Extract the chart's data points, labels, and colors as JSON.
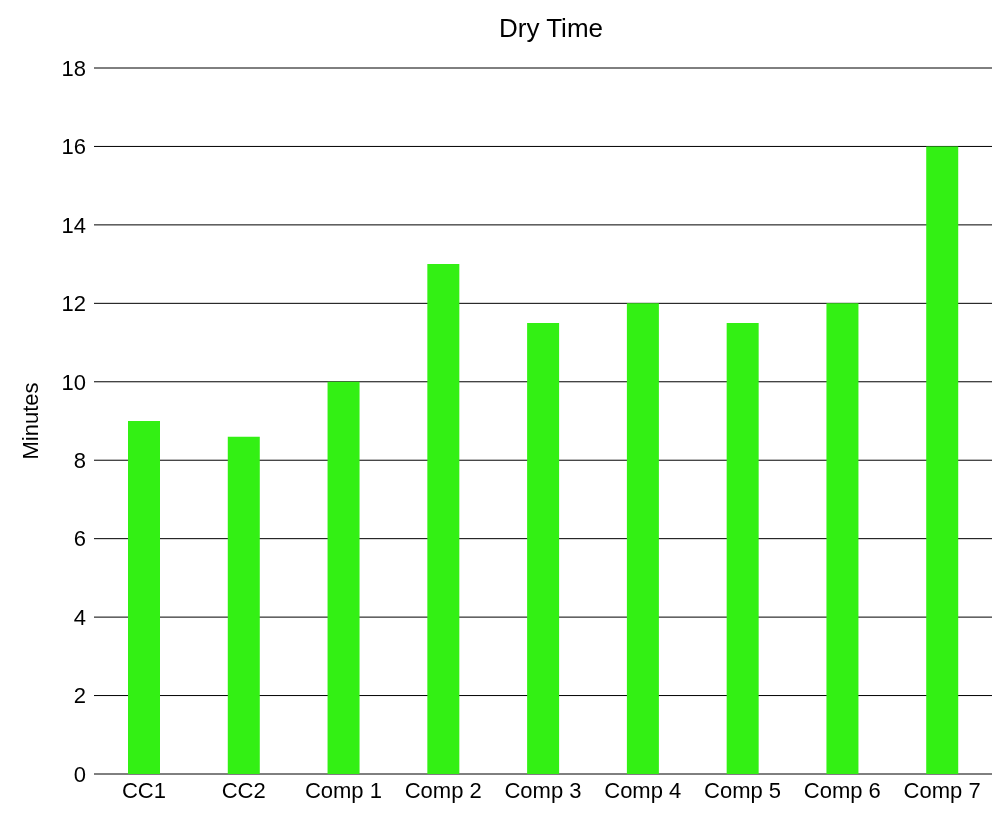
{
  "chart_data": {
    "type": "bar",
    "title": "Dry Time",
    "ylabel": "Minutes",
    "categories": [
      "CC1",
      "CC2",
      "Comp 1",
      "Comp 2",
      "Comp 3",
      "Comp 4",
      "Comp 5",
      "Comp 6",
      "Comp 7"
    ],
    "values": [
      9,
      8.6,
      10,
      13,
      11.5,
      12,
      11.5,
      12,
      16
    ],
    "color": "#33f014",
    "ylim": [
      0,
      18
    ],
    "yticks": [
      0,
      2,
      4,
      6,
      8,
      10,
      12,
      14,
      16,
      18
    ],
    "grid": "y",
    "legend": false
  }
}
